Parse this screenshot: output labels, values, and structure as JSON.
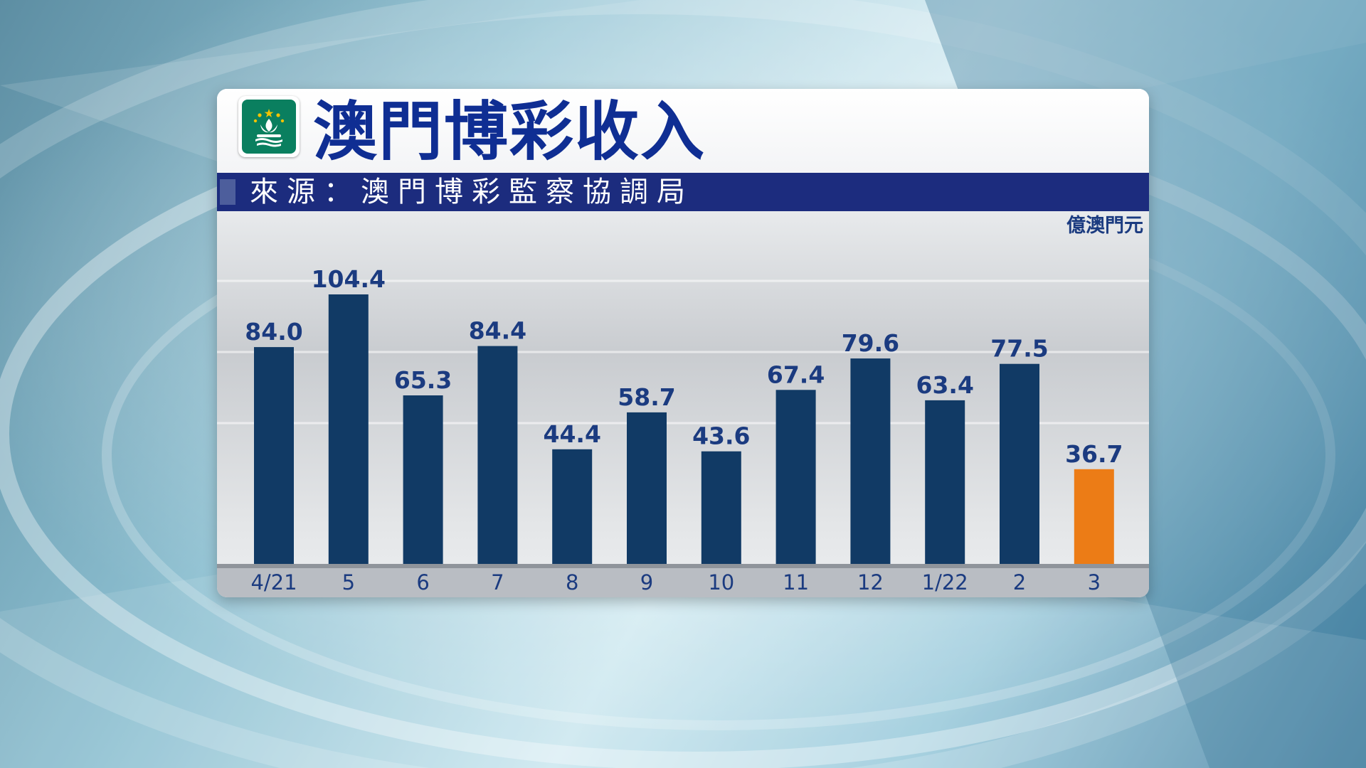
{
  "title": "澳門博彩收入",
  "source": "來源：澳門博彩監察協調局",
  "unit": "億澳門元",
  "colors": {
    "bar": "#113a65",
    "highlight": "#ec7c16",
    "label": "#1b3b80",
    "title": "#0f2e93",
    "source_band": "#1c2c7e"
  },
  "emblem_icon": "macau-flag-icon",
  "chart_data": {
    "type": "bar",
    "title": "澳門博彩收入",
    "subtitle": "來源：澳門博彩監察協調局",
    "ylabel": "億澳門元",
    "xlabel": "",
    "categories": [
      "4/21",
      "5",
      "6",
      "7",
      "8",
      "9",
      "10",
      "11",
      "12",
      "1/22",
      "2",
      "3"
    ],
    "values": [
      84.0,
      104.4,
      65.3,
      84.4,
      44.4,
      58.7,
      43.6,
      67.4,
      79.6,
      63.4,
      77.5,
      36.7
    ],
    "data_labels": [
      "84.0",
      "104.4",
      "65.3",
      "84.4",
      "44.4",
      "58.7",
      "43.6",
      "67.4",
      "79.6",
      "63.4",
      "77.5",
      "36.7"
    ],
    "highlight_index": 11,
    "ylim": [
      0,
      112
    ],
    "grid": false,
    "legend": "none"
  }
}
